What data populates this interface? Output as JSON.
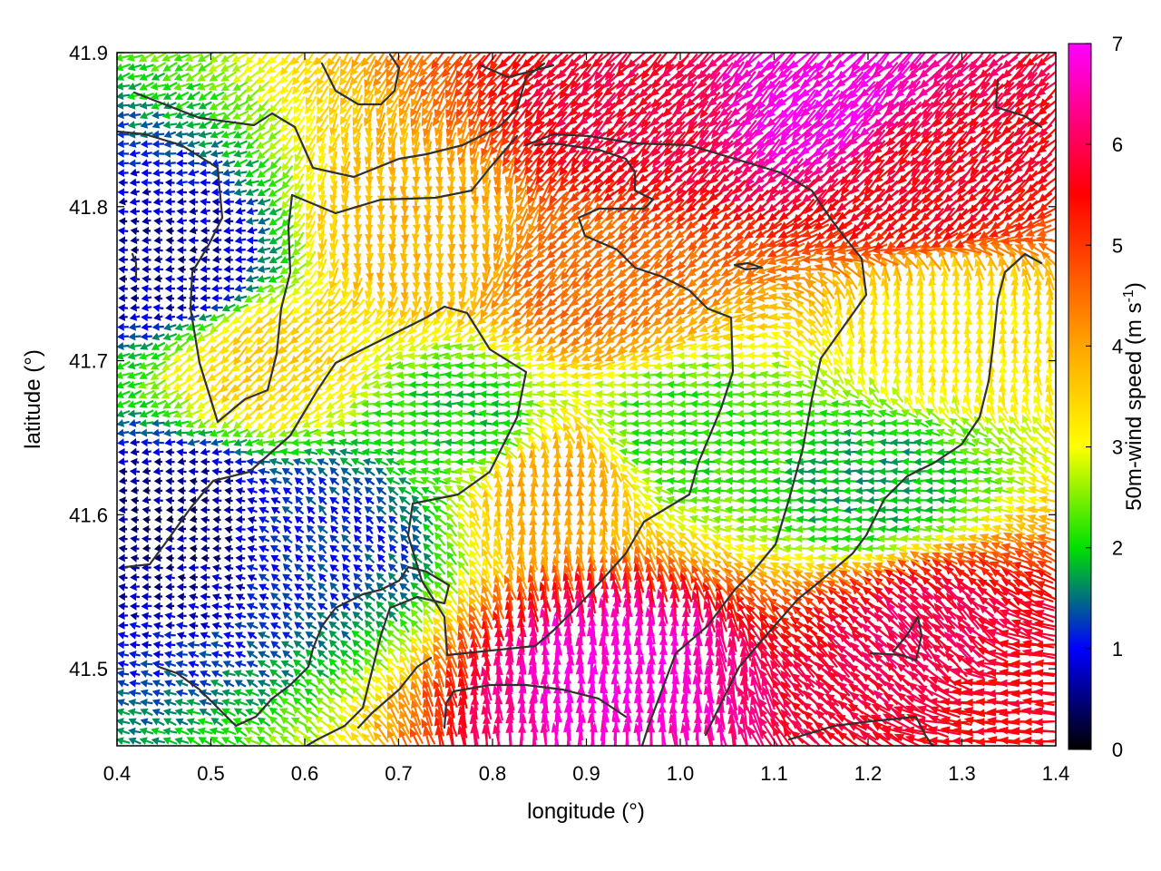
{
  "chart_data": {
    "type": "vector-field",
    "xlabel": "longitude (°)",
    "ylabel": "latitude (°)",
    "xlim": [
      0.4,
      1.4
    ],
    "ylim": [
      41.45,
      41.9
    ],
    "xticks": [
      0.4,
      0.5,
      0.6,
      0.7,
      0.8,
      0.9,
      1.0,
      1.1,
      1.2,
      1.3,
      1.4
    ],
    "xtick_labels": [
      "0.4",
      "0.5",
      "0.6",
      "0.7",
      "0.8",
      "0.9",
      "1.0",
      "1.1",
      "1.2",
      "1.3",
      "1.4"
    ],
    "yticks": [
      41.5,
      41.6,
      41.7,
      41.8,
      41.9
    ],
    "ytick_labels": [
      "41.5",
      "41.6",
      "41.7",
      "41.8",
      "41.9"
    ],
    "colorbar": {
      "label_main": "50m-wind speed (m s",
      "label_sup": "-1",
      "label_close": ")",
      "range": [
        0,
        7
      ],
      "ticks": [
        0,
        1,
        2,
        3,
        4,
        5,
        6,
        7
      ],
      "tick_labels": [
        "0",
        "1",
        "2",
        "3",
        "4",
        "5",
        "6",
        "7"
      ],
      "colors": [
        "#000000",
        "#0000ff",
        "#00e000",
        "#ffff00",
        "#ffa500",
        "#ff0000",
        "#ff00ff"
      ]
    },
    "wind_regions": [
      {
        "center": [
          0.47,
          41.6
        ],
        "speed": 0.5,
        "direction": "west"
      },
      {
        "center": [
          0.46,
          41.76
        ],
        "speed": 0.6,
        "direction": "west"
      },
      {
        "center": [
          0.63,
          41.59
        ],
        "speed": 1.2,
        "direction": "north-west"
      },
      {
        "center": [
          0.77,
          41.66
        ],
        "speed": 2.0,
        "direction": "west"
      },
      {
        "center": [
          0.56,
          41.7
        ],
        "speed": 3.5,
        "direction": "south-west"
      },
      {
        "center": [
          0.72,
          41.78
        ],
        "speed": 3.8,
        "direction": "south"
      },
      {
        "center": [
          0.87,
          41.62
        ],
        "speed": 4.0,
        "direction": "north"
      },
      {
        "center": [
          1.0,
          41.65
        ],
        "speed": 2.1,
        "direction": "west"
      },
      {
        "center": [
          0.91,
          41.75
        ],
        "speed": 4.5,
        "direction": "south-west"
      },
      {
        "center": [
          0.93,
          41.5
        ],
        "speed": 6.8,
        "direction": "north"
      },
      {
        "center": [
          0.95,
          41.86
        ],
        "speed": 5.8,
        "direction": "south-west"
      },
      {
        "center": [
          1.15,
          41.87
        ],
        "speed": 6.9,
        "direction": "south-west"
      },
      {
        "center": [
          1.26,
          41.82
        ],
        "speed": 5.6,
        "direction": "south-west"
      },
      {
        "center": [
          1.2,
          41.62
        ],
        "speed": 1.8,
        "direction": "west"
      },
      {
        "center": [
          1.28,
          41.72
        ],
        "speed": 3.2,
        "direction": "north"
      },
      {
        "center": [
          1.26,
          41.52
        ],
        "speed": 6.0,
        "direction": "north-west"
      },
      {
        "center": [
          1.36,
          41.48
        ],
        "speed": 5.6,
        "direction": "west"
      }
    ]
  }
}
